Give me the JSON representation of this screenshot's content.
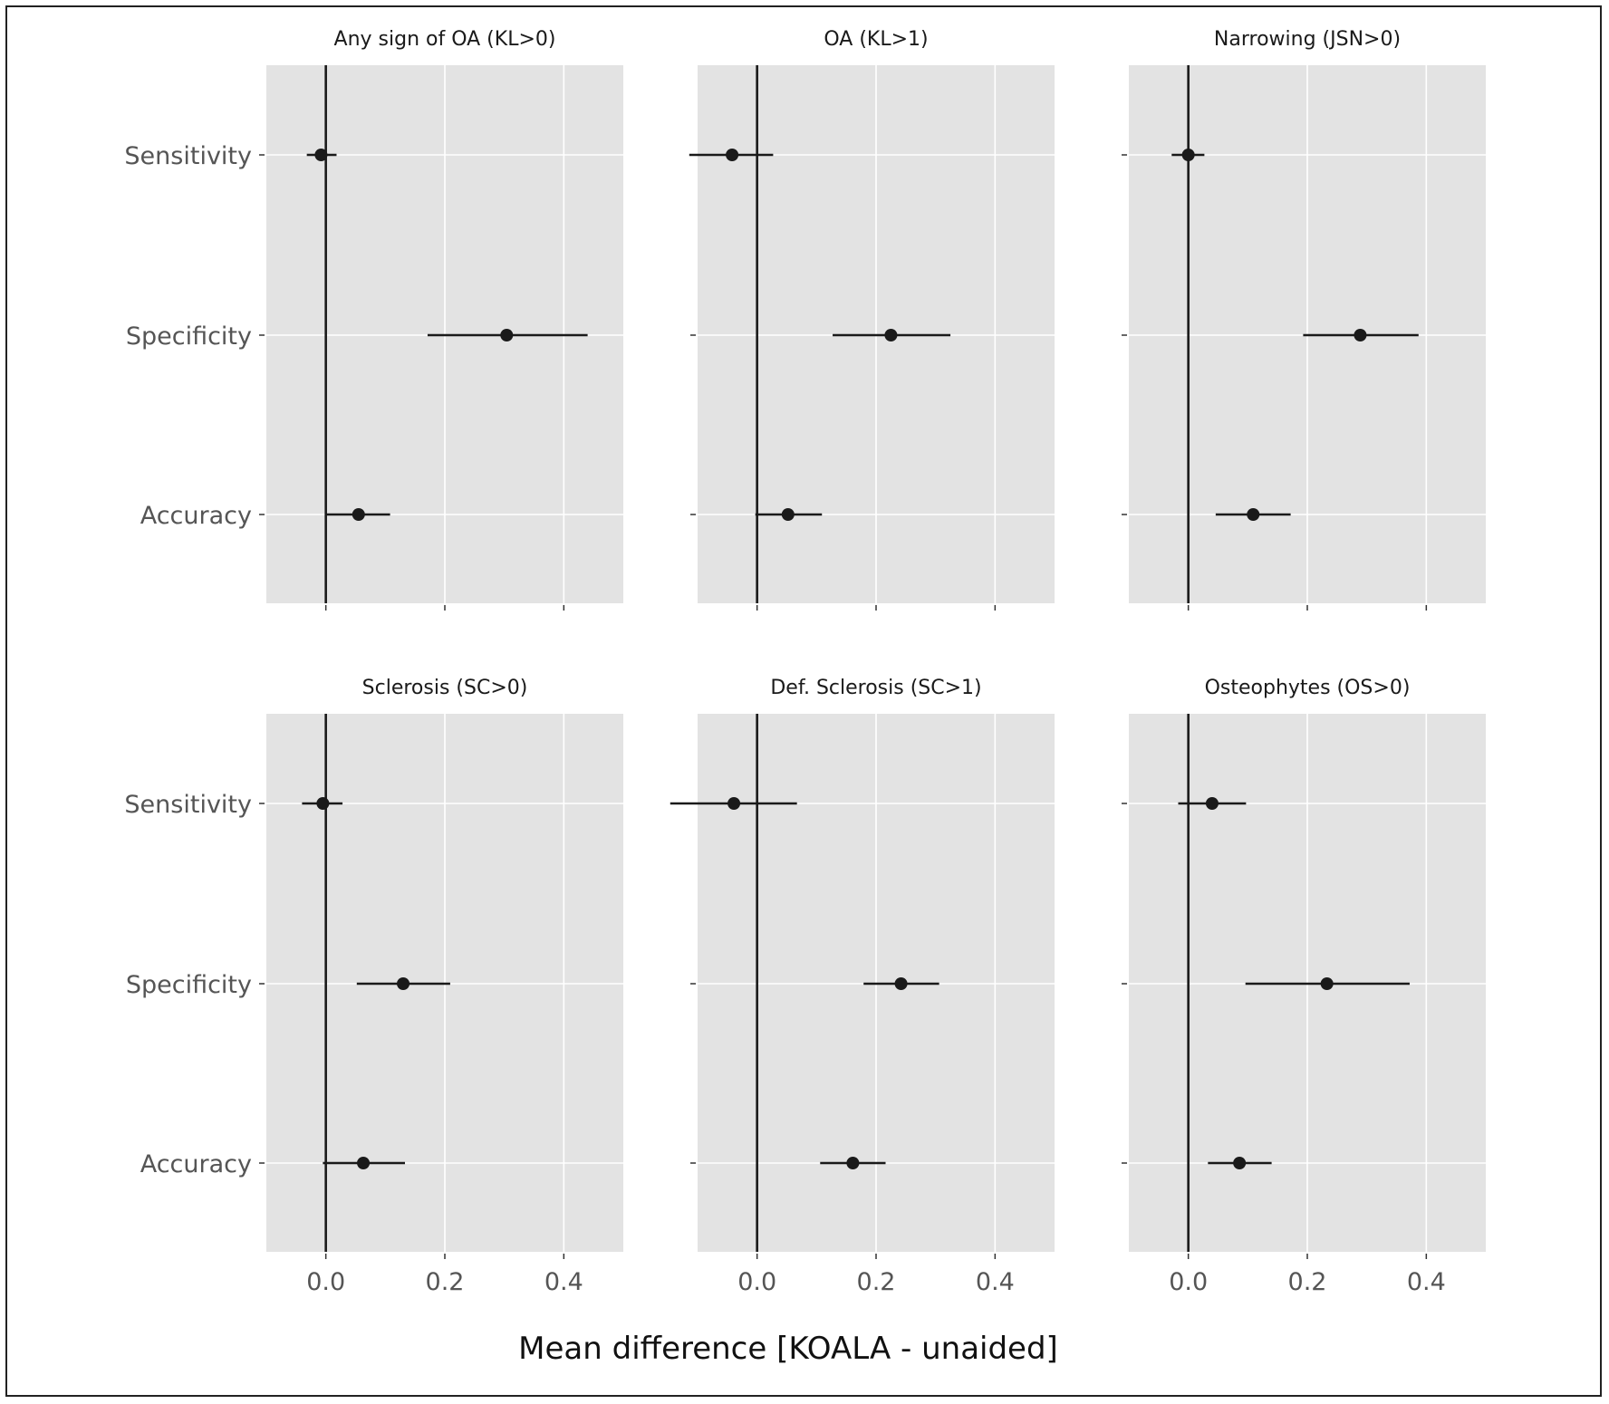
{
  "chart_data": {
    "type": "scatter",
    "subtype": "forest-plot",
    "xlabel": "Mean difference [KOALA - unaided]",
    "xlim": [
      -0.1,
      0.5
    ],
    "xticks": [
      0.0,
      0.2,
      0.4
    ],
    "xtick_labels": [
      "0.0",
      "0.2",
      "0.4"
    ],
    "categories": [
      "Sensitivity",
      "Specificity",
      "Accuracy"
    ],
    "grid": true,
    "reference_line_x": 0.0,
    "colors": {
      "panel_bg": "#e3e3e3",
      "grid": "#ffffff",
      "marks": "#1a1a1a"
    },
    "panels": [
      {
        "title": "Any sign of OA (KL>0)",
        "points": [
          {
            "metric": "Sensitivity",
            "mean": -0.008,
            "lo": -0.032,
            "hi": 0.018
          },
          {
            "metric": "Specificity",
            "mean": 0.304,
            "lo": 0.171,
            "hi": 0.44
          },
          {
            "metric": "Accuracy",
            "mean": 0.055,
            "lo": 0.0,
            "hi": 0.108
          }
        ]
      },
      {
        "title": "OA (KL>1)",
        "points": [
          {
            "metric": "Sensitivity",
            "mean": -0.042,
            "lo": -0.114,
            "hi": 0.027
          },
          {
            "metric": "Specificity",
            "mean": 0.225,
            "lo": 0.127,
            "hi": 0.325
          },
          {
            "metric": "Accuracy",
            "mean": 0.052,
            "lo": -0.003,
            "hi": 0.109
          }
        ]
      },
      {
        "title": "Narrowing (JSN>0)",
        "points": [
          {
            "metric": "Sensitivity",
            "mean": 0.0,
            "lo": -0.028,
            "hi": 0.027
          },
          {
            "metric": "Specificity",
            "mean": 0.289,
            "lo": 0.193,
            "hi": 0.387
          },
          {
            "metric": "Accuracy",
            "mean": 0.109,
            "lo": 0.046,
            "hi": 0.172
          }
        ]
      },
      {
        "title": "Sclerosis (SC>0)",
        "points": [
          {
            "metric": "Sensitivity",
            "mean": -0.005,
            "lo": -0.04,
            "hi": 0.028
          },
          {
            "metric": "Specificity",
            "mean": 0.13,
            "lo": 0.052,
            "hi": 0.209
          },
          {
            "metric": "Accuracy",
            "mean": 0.063,
            "lo": -0.005,
            "hi": 0.133
          }
        ]
      },
      {
        "title": "Def. Sclerosis (SC>1)",
        "points": [
          {
            "metric": "Sensitivity",
            "mean": -0.039,
            "lo": -0.146,
            "hi": 0.067
          },
          {
            "metric": "Specificity",
            "mean": 0.242,
            "lo": 0.179,
            "hi": 0.306
          },
          {
            "metric": "Accuracy",
            "mean": 0.161,
            "lo": 0.106,
            "hi": 0.216
          }
        ]
      },
      {
        "title": "Osteophytes (OS>0)",
        "points": [
          {
            "metric": "Sensitivity",
            "mean": 0.04,
            "lo": -0.017,
            "hi": 0.097
          },
          {
            "metric": "Specificity",
            "mean": 0.233,
            "lo": 0.096,
            "hi": 0.372
          },
          {
            "metric": "Accuracy",
            "mean": 0.086,
            "lo": 0.033,
            "hi": 0.14
          }
        ]
      }
    ]
  }
}
